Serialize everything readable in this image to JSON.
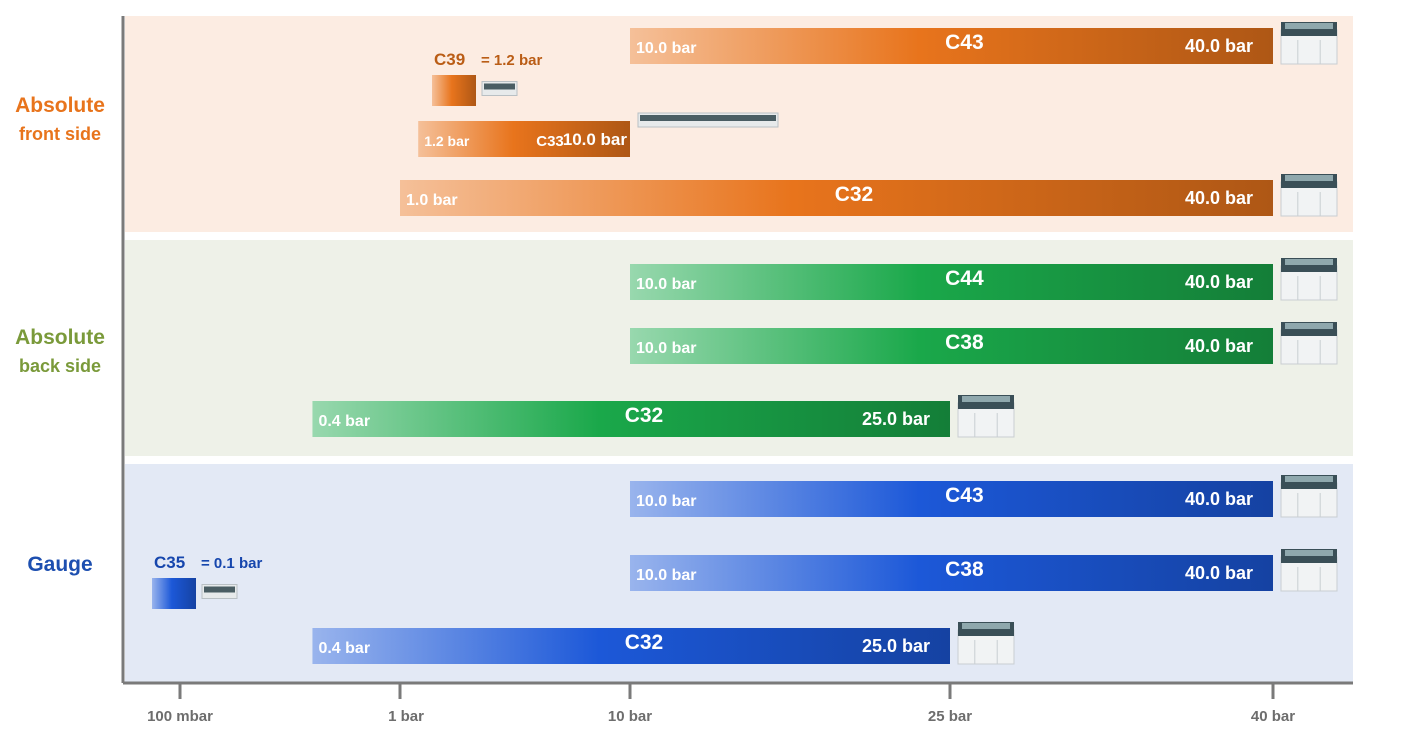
{
  "chart_data": {
    "type": "bar",
    "x_ticks": [
      "100 mbar",
      "1 bar",
      "10 bar",
      "25 bar",
      "40 bar"
    ],
    "groups": [
      {
        "id": "front",
        "label": [
          "Absolute",
          "front side"
        ],
        "color": "#e8741c",
        "bg": "#fcece2",
        "bars": [
          {
            "name": "C43",
            "min": 10.0,
            "max": 40.0,
            "min_label": "10.0 bar",
            "max_label": "40.0 bar"
          },
          {
            "name": "C39",
            "single": 1.2,
            "single_label": "= 1.2 bar"
          },
          {
            "name": "C33",
            "min": 1.2,
            "max": 10.0,
            "min_label": "1.2 bar",
            "max_label": "10.0 bar"
          },
          {
            "name": "C32",
            "min": 1.0,
            "max": 40.0,
            "min_label": "1.0 bar",
            "max_label": "40.0 bar"
          }
        ]
      },
      {
        "id": "back",
        "label": [
          "Absolute",
          "back side"
        ],
        "color": "#1aa84a",
        "bg": "#eef1e8",
        "bars": [
          {
            "name": "C44",
            "min": 10.0,
            "max": 40.0,
            "min_label": "10.0 bar",
            "max_label": "40.0 bar"
          },
          {
            "name": "C38",
            "min": 10.0,
            "max": 40.0,
            "min_label": "10.0 bar",
            "max_label": "40.0 bar"
          },
          {
            "name": "C32",
            "min": 0.4,
            "max": 25.0,
            "min_label": "0.4 bar",
            "max_label": "25.0 bar"
          }
        ]
      },
      {
        "id": "gauge",
        "label": [
          "Gauge"
        ],
        "color": "#1c58d8",
        "bg": "#e3e9f5",
        "bars": [
          {
            "name": "C43",
            "min": 10.0,
            "max": 40.0,
            "min_label": "10.0 bar",
            "max_label": "40.0 bar"
          },
          {
            "name": "C35",
            "single": 0.1,
            "single_label": "= 0.1 bar"
          },
          {
            "name": "C38",
            "min": 10.0,
            "max": 40.0,
            "min_label": "10.0 bar",
            "max_label": "40.0 bar"
          },
          {
            "name": "C32",
            "min": 0.4,
            "max": 25.0,
            "min_label": "0.4 bar",
            "max_label": "25.0 bar"
          }
        ]
      }
    ]
  }
}
